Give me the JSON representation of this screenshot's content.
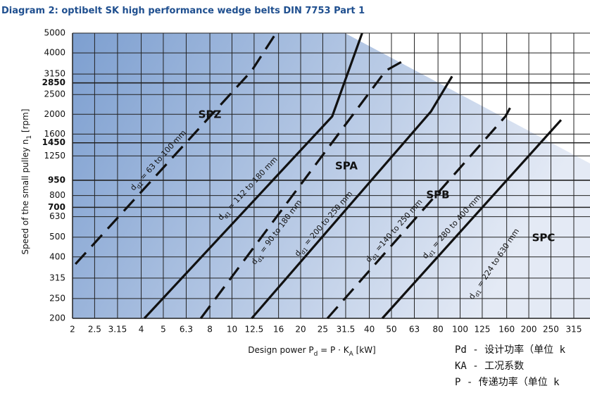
{
  "chart_data": {
    "type": "line",
    "title": "Diagram 2: optibelt SK high performance wedge belts DIN 7753 Part 1",
    "xlabel": [
      "Design power P",
      "d",
      " = P · K",
      "A",
      " [kW]"
    ],
    "ylabel": [
      "Speed of the small pulley n",
      "1",
      " [rpm]"
    ],
    "xscale": "log",
    "yscale": "log",
    "grid": true,
    "xlim": [
      2,
      315
    ],
    "ylim": [
      200,
      5000
    ],
    "xticks": [
      2,
      2.5,
      3.15,
      4,
      5,
      6.3,
      8,
      10,
      12.5,
      16,
      20,
      25,
      31.5,
      40,
      50,
      63,
      80,
      100,
      125,
      160,
      200,
      250,
      315
    ],
    "yticks": [
      200,
      250,
      315,
      400,
      500,
      630,
      700,
      800,
      950,
      1250,
      1450,
      1600,
      2000,
      2500,
      2850,
      3150,
      4000,
      5000
    ],
    "emphasized_yticks": [
      700,
      950,
      1450,
      2850
    ],
    "series": [
      {
        "name": [
          "d",
          "d1",
          " = 63 to 100 mm"
        ],
        "style": "dashed",
        "color": "#111111",
        "x": [
          2.06,
          12.2,
          15.6
        ],
        "values": [
          369,
          3270,
          5000
        ]
      },
      {
        "name": [
          "d",
          "d1",
          " = 112 to 180 mm"
        ],
        "style": "solid",
        "color": "#111111",
        "x": [
          4.13,
          27.5,
          37.2
        ],
        "values": [
          200,
          1954,
          5000
        ]
      },
      {
        "name": [
          "d",
          "d1",
          " = 90 to 180 mm"
        ],
        "style": "dashed",
        "color": "#111111",
        "x": [
          7.3,
          47.2,
          59.3
        ],
        "values": [
          200,
          3270,
          3776
        ]
      },
      {
        "name": [
          "d",
          "d1",
          " = 200 to 250 mm"
        ],
        "style": "solid",
        "color": "#111111",
        "x": [
          12.2,
          74.5,
          92.2
        ],
        "values": [
          200,
          2064,
          3070
        ]
      },
      {
        "name": [
          "d",
          "d1",
          " =140 to 250 mm"
        ],
        "style": "dashed",
        "color": "#111111",
        "x": [
          26.2,
          158,
          172
        ],
        "values": [
          200,
          1954,
          2327
        ]
      },
      {
        "name": [
          "d",
          "d1",
          " = 280 to 400 mm"
        ],
        "style": "solid",
        "color": "#111111",
        "x": [
          45.6,
          277
        ],
        "values": [
          200,
          1876
        ]
      }
    ],
    "annotations": [
      {
        "text": "SPZ"
      },
      {
        "text": "SPA"
      },
      {
        "text": "SPB"
      },
      {
        "text": "SPC"
      },
      {
        "text": [
          "d",
          "d1",
          " = 224 to 630 mm"
        ]
      }
    ],
    "notes": [
      "Pd - 设计功率（单位 k",
      "KA - 工况系数",
      "P  - 传递功率（单位 k"
    ]
  }
}
